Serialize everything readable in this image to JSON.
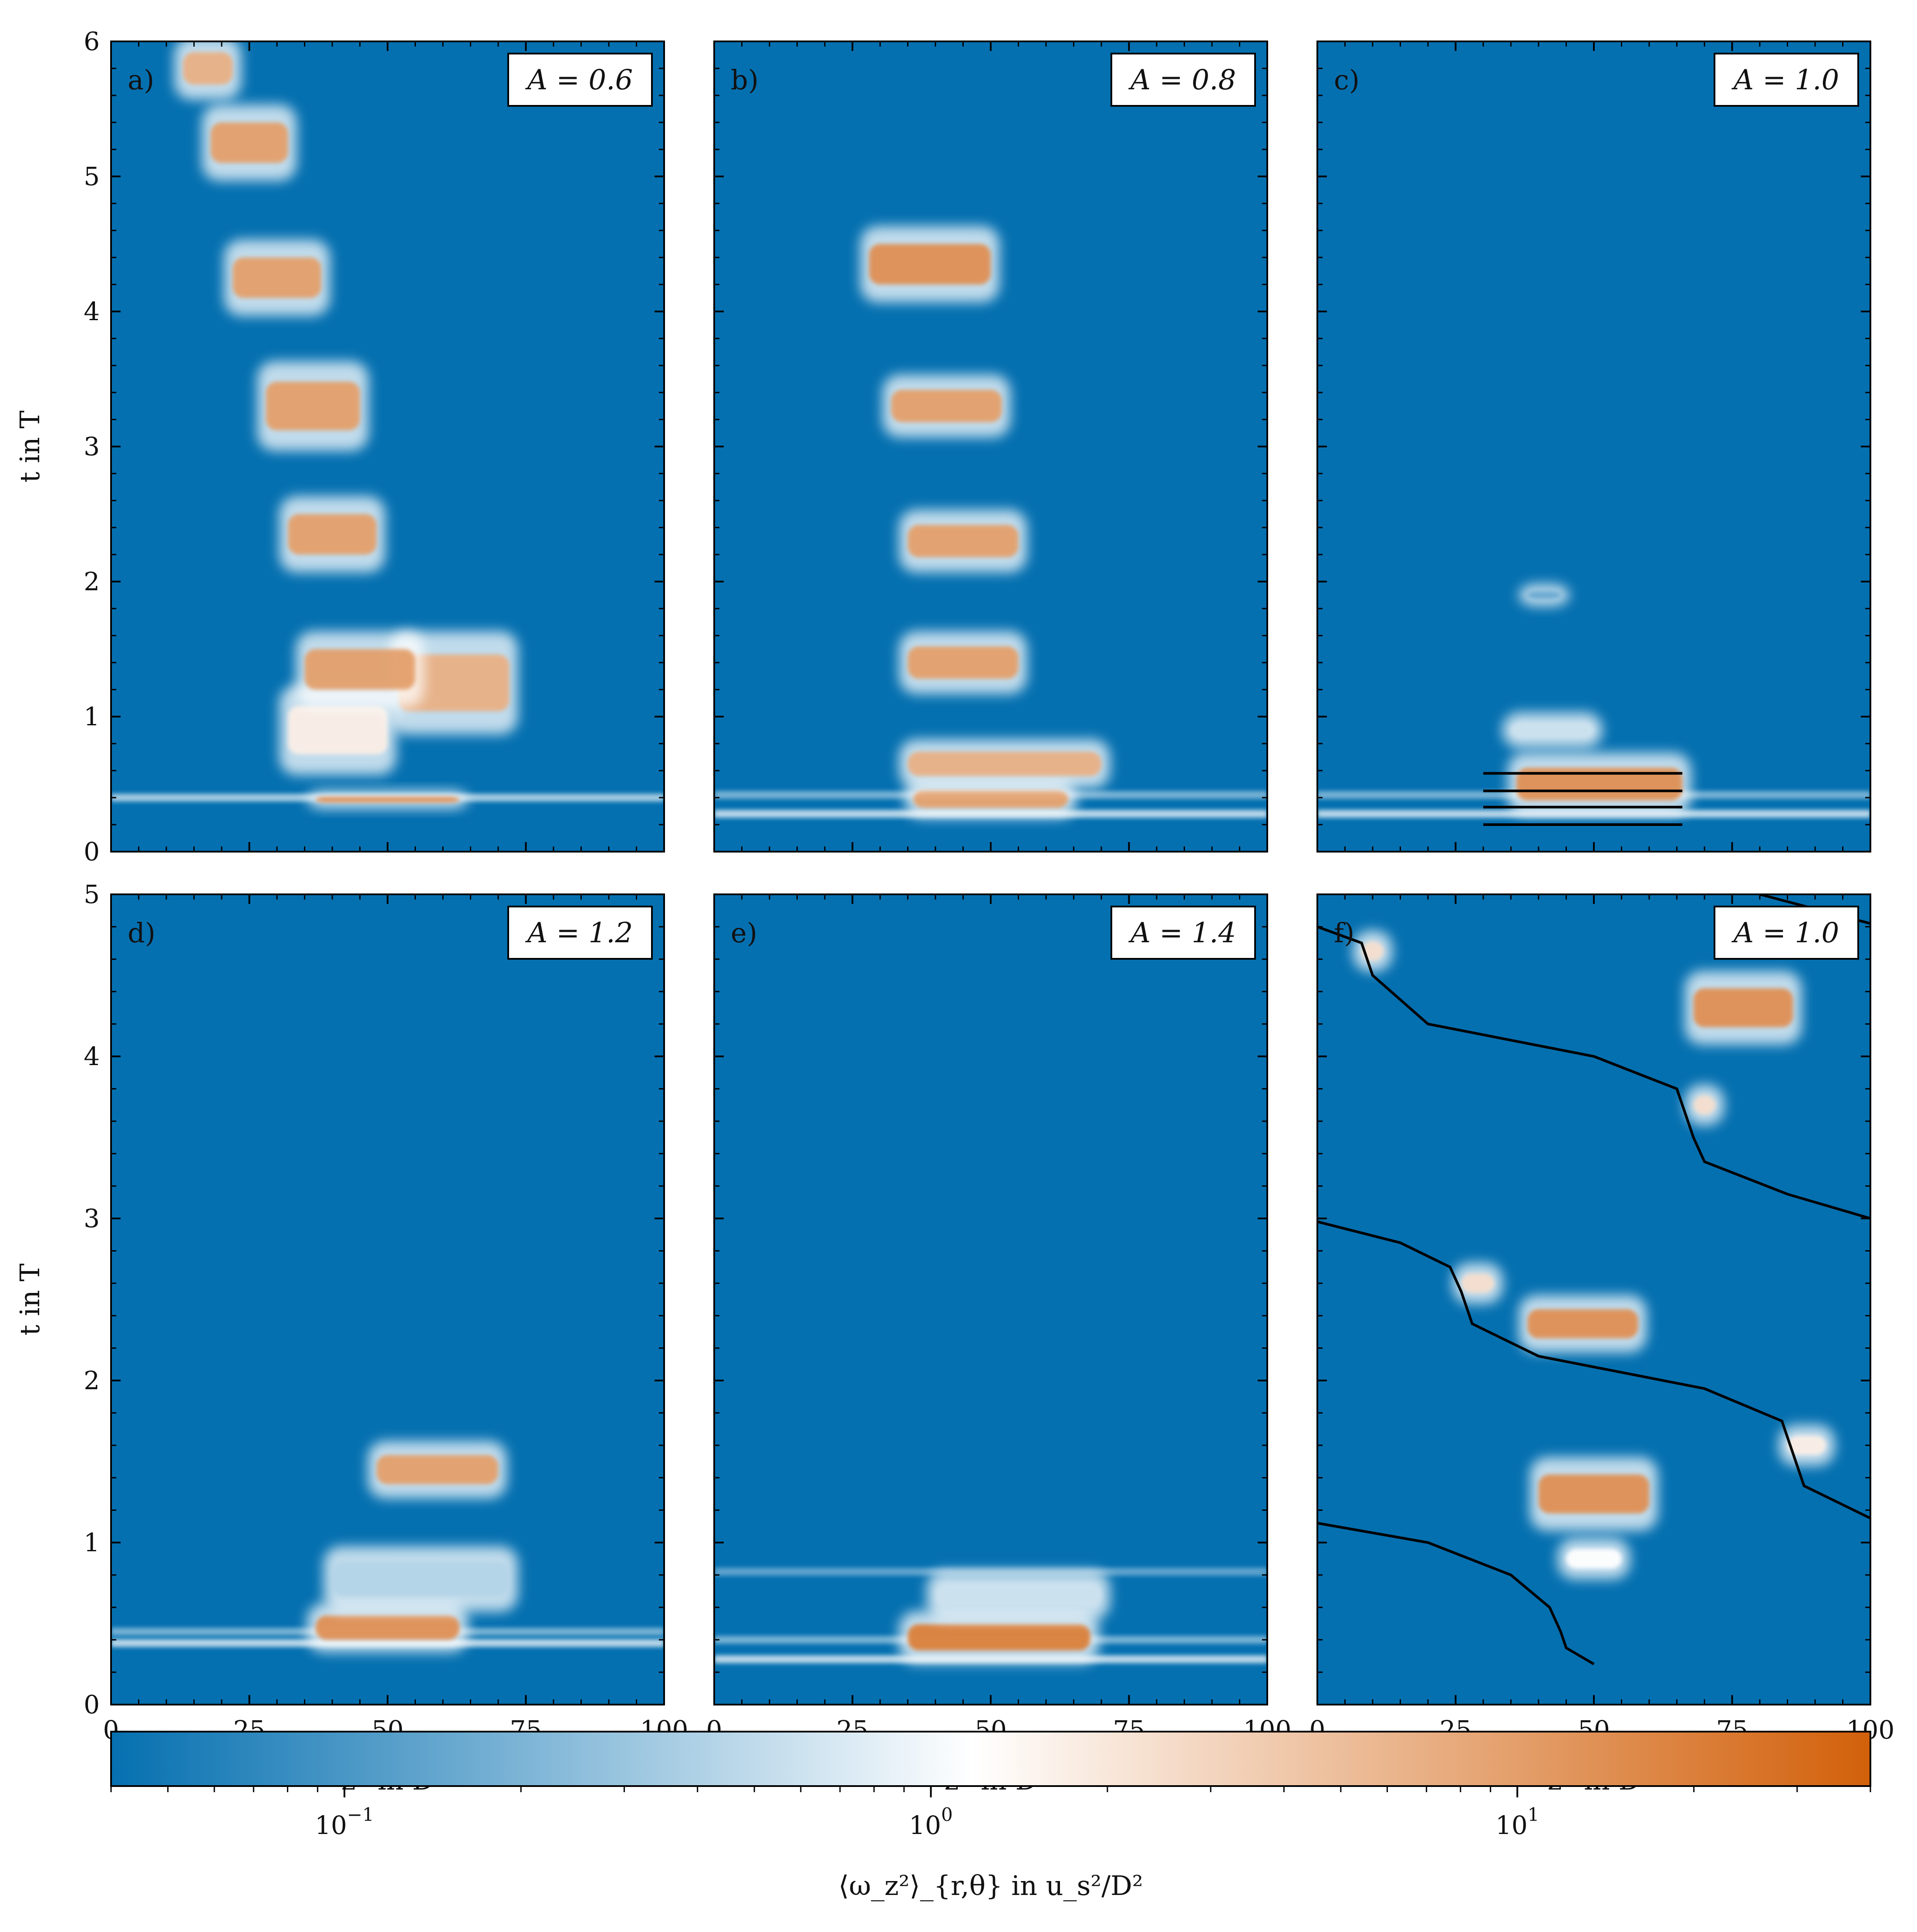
{
  "chart_data": {
    "type": "heatmap",
    "layout": "2x3 small multiples with shared log color bar",
    "xlabel": "z* in D",
    "ylabel": "t in T",
    "xlim": [
      0,
      100
    ],
    "xticks": [
      "0",
      "25",
      "50",
      "75",
      "100"
    ],
    "colors": {
      "low": "#0570b0",
      "mid": "#ffffff",
      "high": "#d2600a",
      "line": "#000000"
    },
    "panels": [
      {
        "label": "a)",
        "param": "A = 0.6",
        "ylim": [
          0,
          6
        ],
        "yticks": [
          "0",
          "1",
          "2",
          "3",
          "4",
          "5",
          "6"
        ],
        "bursts": [
          {
            "z": [
              37,
              63
            ],
            "t": [
              0.35,
              0.42
            ],
            "level": 0.85
          },
          {
            "z": [
              32,
              50
            ],
            "t": [
              0.6,
              1.2
            ],
            "level": 0.55
          },
          {
            "z": [
              52,
              72
            ],
            "t": [
              0.9,
              1.6
            ],
            "level": 0.75
          },
          {
            "z": [
              35,
              55
            ],
            "t": [
              1.1,
              1.6
            ],
            "level": 0.8
          },
          {
            "z": [
              32,
              48
            ],
            "t": [
              2.1,
              2.6
            ],
            "level": 0.8
          },
          {
            "z": [
              28,
              45
            ],
            "t": [
              3.0,
              3.6
            ],
            "level": 0.8
          },
          {
            "z": [
              22,
              38
            ],
            "t": [
              4.0,
              4.5
            ],
            "level": 0.8
          },
          {
            "z": [
              18,
              32
            ],
            "t": [
              5.0,
              5.5
            ],
            "level": 0.8
          },
          {
            "z": [
              13,
              22
            ],
            "t": [
              5.6,
              6.0
            ],
            "level": 0.75
          }
        ],
        "bands": [
          {
            "t": 0.4,
            "level": 0.35
          }
        ],
        "lines": []
      },
      {
        "label": "b)",
        "param": "A = 0.8",
        "ylim": [
          0,
          6
        ],
        "yticks": [
          "0",
          "1",
          "2",
          "3",
          "4",
          "5",
          "6"
        ],
        "bursts": [
          {
            "z": [
              36,
              64
            ],
            "t": [
              0.28,
              0.5
            ],
            "level": 0.8
          },
          {
            "z": [
              35,
              70
            ],
            "t": [
              0.5,
              0.8
            ],
            "level": 0.75
          },
          {
            "z": [
              35,
              55
            ],
            "t": [
              1.2,
              1.6
            ],
            "level": 0.8
          },
          {
            "z": [
              35,
              55
            ],
            "t": [
              2.1,
              2.5
            ],
            "level": 0.8
          },
          {
            "z": [
              32,
              52
            ],
            "t": [
              3.1,
              3.5
            ],
            "level": 0.8
          },
          {
            "z": [
              28,
              50
            ],
            "t": [
              4.1,
              4.6
            ],
            "level": 0.85
          }
        ],
        "bands": [
          {
            "t": 0.28,
            "level": 0.4
          },
          {
            "t": 0.42,
            "level": 0.25
          }
        ],
        "lines": []
      },
      {
        "label": "c)",
        "param": "A = 1.0",
        "ylim": [
          0,
          6
        ],
        "yticks": [
          "0",
          "1",
          "2",
          "3",
          "4",
          "5",
          "6"
        ],
        "bursts": [
          {
            "z": [
              36,
              66
            ],
            "t": [
              0.3,
              0.7
            ],
            "level": 0.85
          },
          {
            "z": [
              35,
              50
            ],
            "t": [
              0.8,
              1.0
            ],
            "level": 0.4
          },
          {
            "z": [
              38,
              44
            ],
            "t": [
              1.85,
              1.95
            ],
            "level": 0.2
          }
        ],
        "bands": [
          {
            "t": 0.28,
            "level": 0.4
          },
          {
            "t": 0.42,
            "level": 0.25
          }
        ],
        "lines": [
          {
            "x": [
              30,
              66
            ],
            "y": [
              0.2,
              0.2
            ]
          },
          {
            "x": [
              30,
              66
            ],
            "y": [
              0.33,
              0.33
            ]
          },
          {
            "x": [
              30,
              66
            ],
            "y": [
              0.45,
              0.45
            ]
          },
          {
            "x": [
              30,
              66
            ],
            "y": [
              0.58,
              0.58
            ]
          }
        ]
      },
      {
        "label": "d)",
        "param": "A = 1.2",
        "ylim": [
          0,
          5
        ],
        "yticks": [
          "0",
          "1",
          "2",
          "3",
          "4",
          "5"
        ],
        "bursts": [
          {
            "z": [
              37,
              63
            ],
            "t": [
              0.35,
              0.6
            ],
            "level": 0.85
          },
          {
            "z": [
              40,
              72
            ],
            "t": [
              0.6,
              0.95
            ],
            "level": 0.35
          },
          {
            "z": [
              48,
              70
            ],
            "t": [
              1.3,
              1.6
            ],
            "level": 0.8
          }
        ],
        "bands": [
          {
            "t": 0.38,
            "level": 0.4
          },
          {
            "t": 0.45,
            "level": 0.25
          }
        ],
        "lines": []
      },
      {
        "label": "e)",
        "param": "A = 1.4",
        "ylim": [
          0,
          5
        ],
        "yticks": [
          "0",
          "1",
          "2",
          "3",
          "4",
          "5"
        ],
        "bursts": [
          {
            "z": [
              35,
              68
            ],
            "t": [
              0.28,
              0.55
            ],
            "level": 0.9
          },
          {
            "z": [
              40,
              70
            ],
            "t": [
              0.55,
              0.8
            ],
            "level": 0.4
          }
        ],
        "bands": [
          {
            "t": 0.28,
            "level": 0.4
          },
          {
            "t": 0.4,
            "level": 0.25
          },
          {
            "t": 0.82,
            "level": 0.2
          }
        ],
        "lines": []
      },
      {
        "label": "f)",
        "param": "A = 1.0",
        "ylim": [
          0,
          5
        ],
        "yticks": [
          "0",
          "1",
          "2",
          "3",
          "4",
          "5"
        ],
        "bursts": [
          {
            "z": [
              45,
              55
            ],
            "t": [
              0.8,
              1.0
            ],
            "level": 0.5
          },
          {
            "z": [
              40,
              60
            ],
            "t": [
              1.1,
              1.5
            ],
            "level": 0.85
          },
          {
            "z": [
              85,
              92
            ],
            "t": [
              1.5,
              1.7
            ],
            "level": 0.55
          },
          {
            "z": [
              38,
              58
            ],
            "t": [
              2.2,
              2.5
            ],
            "level": 0.85
          },
          {
            "z": [
              26,
              32
            ],
            "t": [
              2.5,
              2.7
            ],
            "level": 0.6
          },
          {
            "z": [
              68,
              72
            ],
            "t": [
              3.6,
              3.8
            ],
            "level": 0.6
          },
          {
            "z": [
              68,
              86
            ],
            "t": [
              4.1,
              4.5
            ],
            "level": 0.85
          },
          {
            "z": [
              8,
              12
            ],
            "t": [
              4.55,
              4.75
            ],
            "level": 0.6
          }
        ],
        "bands": [],
        "lines": [
          {
            "x": [
              0,
              20,
              35,
              42,
              44,
              45,
              50
            ],
            "y": [
              1.12,
              1.0,
              0.8,
              0.6,
              0.45,
              0.35,
              0.25
            ]
          },
          {
            "x": [
              0,
              15,
              24,
              26,
              28,
              40,
              70,
              84,
              86,
              88,
              100
            ],
            "y": [
              2.98,
              2.85,
              2.7,
              2.55,
              2.35,
              2.15,
              1.95,
              1.75,
              1.55,
              1.35,
              1.15
            ]
          },
          {
            "x": [
              0,
              8,
              10,
              20,
              50,
              65,
              68,
              70,
              85,
              100
            ],
            "y": [
              4.8,
              4.7,
              4.5,
              4.2,
              4.0,
              3.8,
              3.5,
              3.35,
              3.15,
              3.0
            ]
          },
          {
            "x": [
              80,
              100
            ],
            "y": [
              5.0,
              4.82
            ]
          }
        ]
      }
    ],
    "colorbar": {
      "scale": "log",
      "range": [
        0.04,
        40
      ],
      "ticks": [
        {
          "value": 0.1,
          "base": "10",
          "exp": "−1"
        },
        {
          "value": 1,
          "base": "10",
          "exp": "0"
        },
        {
          "value": 10,
          "base": "10",
          "exp": "1"
        }
      ],
      "label": "⟨ω_z²⟩_{r,θ} in u_s²/D²"
    }
  }
}
